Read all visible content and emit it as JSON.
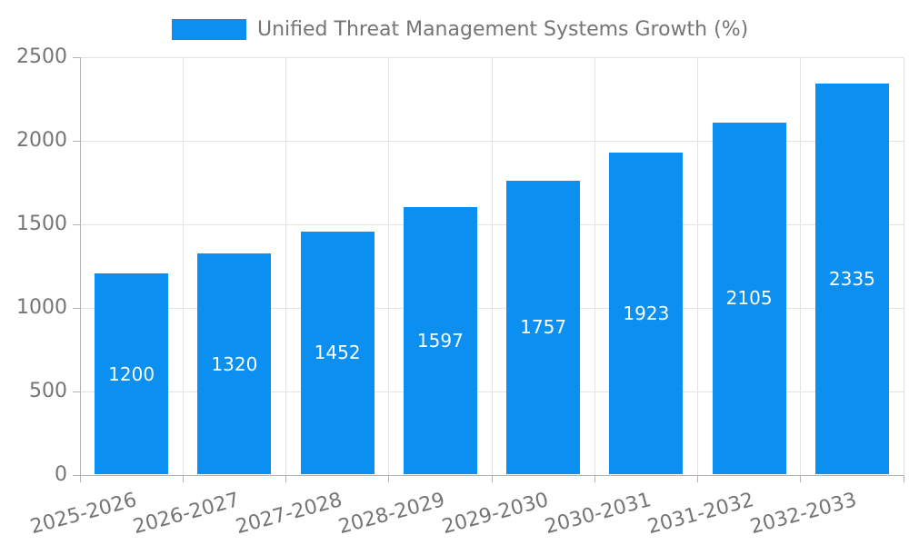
{
  "chart_data": {
    "type": "bar",
    "title": "",
    "legend": {
      "label": "Unified Threat Management Systems Growth (%)",
      "position": "top"
    },
    "categories": [
      "2025-2026",
      "2026-2027",
      "2027-2028",
      "2028-2029",
      "2029-2030",
      "2030-2031",
      "2031-2032",
      "2032-2033"
    ],
    "values": [
      1200,
      1320,
      1452,
      1597,
      1757,
      1923,
      2105,
      2335
    ],
    "xlabel": "",
    "ylabel": "",
    "ylim": [
      0,
      2500
    ],
    "yticks": [
      0,
      500,
      1000,
      1500,
      2000,
      2500
    ],
    "grid": true,
    "value_labels_inside_bars": true,
    "x_label_rotation_deg": -15,
    "colors": {
      "bar": "#0b8ff0",
      "value_label_text": "#ffffff",
      "axis_text": "#757575",
      "grid_line": "#e3e3e3",
      "axis_line": "#b3b3b3",
      "background": "#ffffff"
    }
  }
}
